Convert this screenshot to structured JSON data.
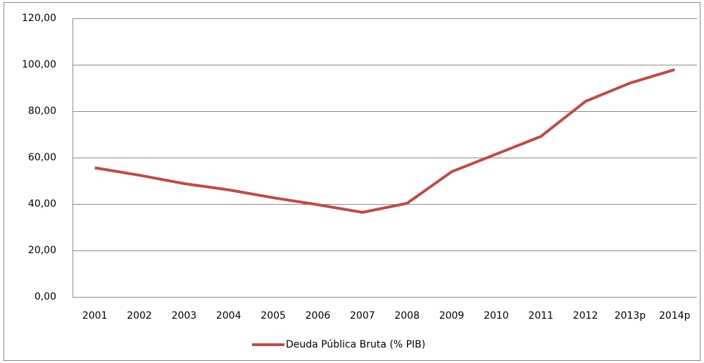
{
  "chart_data": {
    "type": "line",
    "categories": [
      "2001",
      "2002",
      "2003",
      "2004",
      "2005",
      "2006",
      "2007",
      "2008",
      "2009",
      "2010",
      "2011",
      "2012",
      "2013p",
      "2014p"
    ],
    "series": [
      {
        "name": "Deuda Pública Bruta (% PIB)",
        "color": "#be4b48",
        "values": [
          55.6,
          52.4,
          48.8,
          46.1,
          42.7,
          39.7,
          36.4,
          40.3,
          53.9,
          61.5,
          69.1,
          84.2,
          92.1,
          97.9
        ]
      }
    ],
    "ylim": [
      0,
      120
    ],
    "yticks": [
      {
        "value": 0,
        "label": "0,00"
      },
      {
        "value": 20,
        "label": "20,00"
      },
      {
        "value": 40,
        "label": "40,00"
      },
      {
        "value": 60,
        "label": "60,00"
      },
      {
        "value": 80,
        "label": "80,00"
      },
      {
        "value": 100,
        "label": "100,00"
      },
      {
        "value": 120,
        "label": "120,00"
      }
    ],
    "grid": true,
    "legend": "bottom"
  }
}
